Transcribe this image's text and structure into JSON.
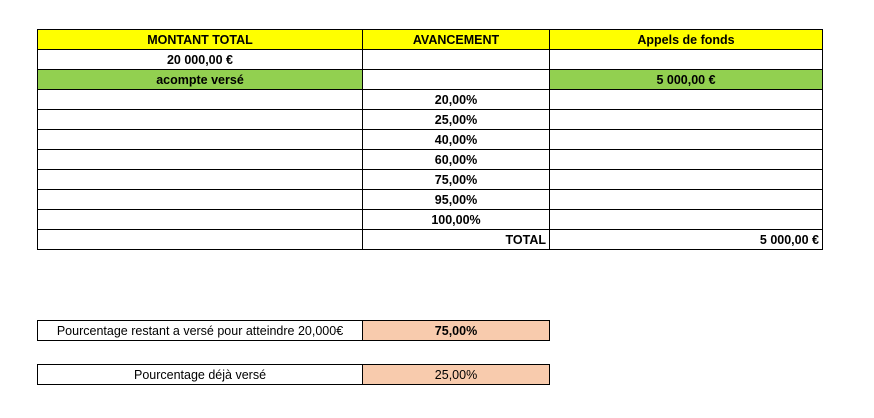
{
  "header": {
    "col1": "MONTANT TOTAL",
    "col2": "AVANCEMENT",
    "col3": "Appels de fonds"
  },
  "montant_total": "20 000,00 €",
  "acompte": {
    "label": "acompte versé",
    "amount": "5 000,00 €"
  },
  "avancement": [
    "20,00%",
    "25,00%",
    "40,00%",
    "60,00%",
    "75,00%",
    "95,00%",
    "100,00%"
  ],
  "total": {
    "label": "TOTAL",
    "value": "5 000,00 €"
  },
  "summary": {
    "remaining_label": "Pourcentage restant a versé pour atteindre 20,000€",
    "remaining_value": "75,00%",
    "paid_label": "Pourcentage déjà  versé",
    "paid_value": "25,00%"
  },
  "colors": {
    "header_bg": "#ffff00",
    "acompte_bg": "#92d050",
    "summary_value_bg": "#f8cbad"
  }
}
